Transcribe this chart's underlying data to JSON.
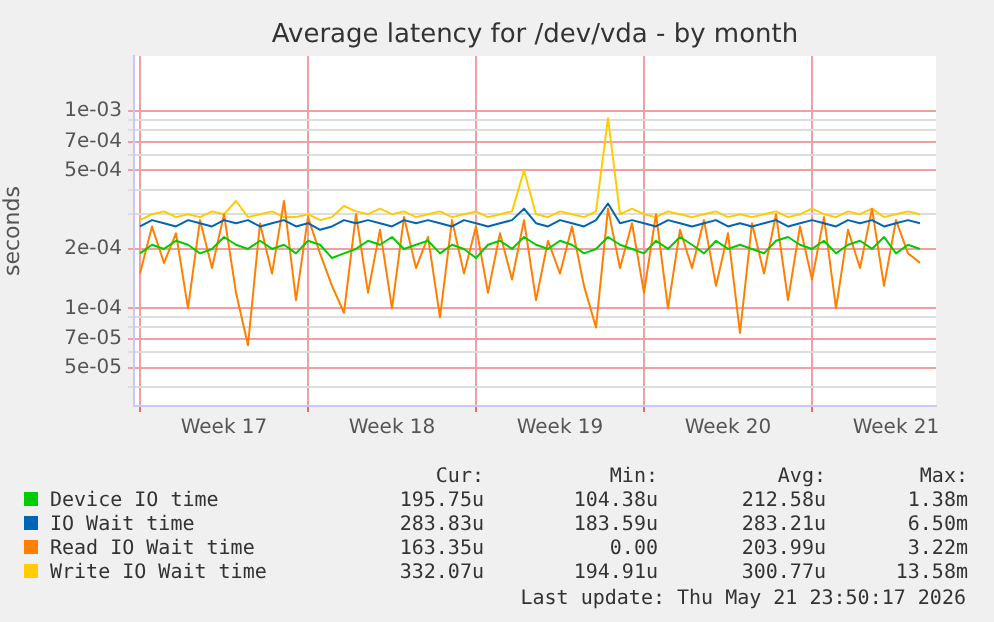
{
  "chart_data": {
    "type": "line",
    "title": "Average latency for /dev/vda - by month",
    "ylabel": "seconds",
    "log": true,
    "grid": true,
    "legend": "bottom",
    "x": [
      "2026-04-19T00:00",
      "2026-04-19T12:00",
      "2026-04-20T00:00",
      "2026-04-20T12:00",
      "2026-04-21T00:00",
      "2026-04-21T12:00",
      "2026-04-22T00:00",
      "2026-04-22T12:00",
      "2026-04-23T00:00",
      "2026-04-23T12:00",
      "2026-04-24T00:00",
      "2026-04-24T12:00",
      "2026-04-25T00:00",
      "2026-04-25T12:00",
      "2026-04-26T00:00",
      "2026-04-26T12:00",
      "2026-04-27T00:00",
      "2026-04-27T12:00",
      "2026-04-28T00:00",
      "2026-04-28T12:00",
      "2026-04-29T00:00",
      "2026-04-29T12:00",
      "2026-04-30T00:00",
      "2026-04-30T12:00",
      "2026-05-01T00:00",
      "2026-05-01T12:00",
      "2026-05-02T00:00",
      "2026-05-02T12:00",
      "2026-05-03T00:00",
      "2026-05-03T12:00",
      "2026-05-04T00:00",
      "2026-05-04T12:00",
      "2026-05-05T00:00",
      "2026-05-05T12:00",
      "2026-05-06T00:00",
      "2026-05-06T12:00",
      "2026-05-07T00:00",
      "2026-05-07T12:00",
      "2026-05-08T00:00",
      "2026-05-08T12:00",
      "2026-05-09T00:00",
      "2026-05-09T12:00",
      "2026-05-10T00:00",
      "2026-05-10T12:00",
      "2026-05-11T00:00",
      "2026-05-11T12:00",
      "2026-05-12T00:00",
      "2026-05-12T12:00",
      "2026-05-13T00:00",
      "2026-05-13T12:00",
      "2026-05-14T00:00",
      "2026-05-14T12:00",
      "2026-05-15T00:00",
      "2026-05-15T12:00",
      "2026-05-16T00:00",
      "2026-05-16T12:00",
      "2026-05-17T00:00",
      "2026-05-17T12:00",
      "2026-05-18T00:00",
      "2026-05-18T12:00",
      "2026-05-19T00:00",
      "2026-05-19T12:00",
      "2026-05-20T00:00",
      "2026-05-20T12:00",
      "2026-05-21T00:00",
      "2026-05-21T12:00"
    ],
    "series": [
      {
        "name": "Device IO time",
        "color": "#00cc00",
        "values": [
          0.00019,
          0.00021,
          0.0002,
          0.00022,
          0.00021,
          0.00019,
          0.0002,
          0.00023,
          0.00021,
          0.0002,
          0.00022,
          0.0002,
          0.00021,
          0.00019,
          0.00022,
          0.00021,
          0.00018,
          0.00019,
          0.0002,
          0.00022,
          0.00021,
          0.00023,
          0.0002,
          0.00021,
          0.00022,
          0.00019,
          0.00021,
          0.0002,
          0.00018,
          0.00021,
          0.00022,
          0.0002,
          0.00023,
          0.00021,
          0.0002,
          0.00022,
          0.00021,
          0.00019,
          0.0002,
          0.00023,
          0.00021,
          0.0002,
          0.00019,
          0.00022,
          0.0002,
          0.00023,
          0.00021,
          0.00019,
          0.00022,
          0.0002,
          0.00021,
          0.0002,
          0.00019,
          0.00022,
          0.00023,
          0.00021,
          0.0002,
          0.00022,
          0.00019,
          0.00021,
          0.00022,
          0.0002,
          0.00023,
          0.00019,
          0.00021,
          0.0002
        ]
      },
      {
        "name": "IO Wait time",
        "color": "#0066b3",
        "values": [
          0.00026,
          0.00028,
          0.00027,
          0.00026,
          0.00028,
          0.00027,
          0.00026,
          0.00028,
          0.00027,
          0.00028,
          0.00026,
          0.00027,
          0.00028,
          0.00026,
          0.00027,
          0.00025,
          0.00026,
          0.00028,
          0.00027,
          0.00028,
          0.00027,
          0.00026,
          0.00028,
          0.00027,
          0.00028,
          0.00027,
          0.00026,
          0.00028,
          0.00027,
          0.00026,
          0.00027,
          0.00028,
          0.00032,
          0.00027,
          0.00026,
          0.00028,
          0.00027,
          0.00026,
          0.00028,
          0.00034,
          0.00027,
          0.00028,
          0.00027,
          0.00026,
          0.00028,
          0.00027,
          0.00026,
          0.00027,
          0.00028,
          0.00026,
          0.00027,
          0.00026,
          0.00027,
          0.00028,
          0.00026,
          0.00027,
          0.00028,
          0.00027,
          0.00026,
          0.00028,
          0.00027,
          0.00028,
          0.00026,
          0.00027,
          0.00028,
          0.00027
        ]
      },
      {
        "name": "Read IO Wait time",
        "color": "#ff8000",
        "values": [
          0.00015,
          0.00026,
          0.00017,
          0.00024,
          0.0001,
          0.00028,
          0.00016,
          0.0003,
          0.00012,
          6.5e-05,
          0.00027,
          0.00015,
          0.00035,
          0.00011,
          0.00029,
          0.00019,
          0.00013,
          9.5e-05,
          0.0003,
          0.00012,
          0.00025,
          0.0001,
          0.00029,
          0.00016,
          0.00023,
          9e-05,
          0.00028,
          0.00015,
          0.00026,
          0.00012,
          0.00024,
          0.00014,
          0.00028,
          0.00011,
          0.00022,
          0.00015,
          0.00026,
          0.00013,
          8e-05,
          0.00032,
          0.00016,
          0.00027,
          0.00012,
          0.0003,
          0.0001,
          0.00025,
          0.00016,
          0.00028,
          0.00013,
          0.00024,
          7.5e-05,
          0.00027,
          0.00015,
          0.0003,
          0.00011,
          0.00026,
          0.00014,
          0.00029,
          0.0001,
          0.00025,
          0.00016,
          0.00032,
          0.00013,
          0.00028,
          0.00019,
          0.00017
        ]
      },
      {
        "name": "Write IO Wait time",
        "color": "#ffcc00",
        "values": [
          0.00028,
          0.0003,
          0.00031,
          0.00029,
          0.0003,
          0.00029,
          0.00031,
          0.0003,
          0.00035,
          0.00029,
          0.0003,
          0.00031,
          0.00029,
          0.00029,
          0.0003,
          0.00028,
          0.00029,
          0.00033,
          0.00031,
          0.0003,
          0.00032,
          0.0003,
          0.00031,
          0.00029,
          0.0003,
          0.00031,
          0.00029,
          0.0003,
          0.00031,
          0.00029,
          0.0003,
          0.00031,
          0.0005,
          0.0003,
          0.00029,
          0.00031,
          0.0003,
          0.00029,
          0.00031,
          0.00092,
          0.0003,
          0.00032,
          0.0003,
          0.00029,
          0.00031,
          0.0003,
          0.00029,
          0.0003,
          0.00031,
          0.00029,
          0.0003,
          0.00029,
          0.0003,
          0.00031,
          0.00029,
          0.0003,
          0.00032,
          0.0003,
          0.00029,
          0.00031,
          0.0003,
          0.00032,
          0.00029,
          0.0003,
          0.00031,
          0.0003
        ]
      }
    ],
    "ylim": [
      3.2e-05,
      0.0019
    ],
    "yticks": [
      {
        "value": 4e-05,
        "label": null
      },
      {
        "value": 5e-05,
        "label": "5e-05"
      },
      {
        "value": 6e-05,
        "label": null
      },
      {
        "value": 7e-05,
        "label": "7e-05"
      },
      {
        "value": 8e-05,
        "label": null
      },
      {
        "value": 9e-05,
        "label": null
      },
      {
        "value": 0.0001,
        "label": "1e-04"
      },
      {
        "value": 0.0002,
        "label": "2e-04"
      },
      {
        "value": 0.0003,
        "label": null
      },
      {
        "value": 0.0004,
        "label": null
      },
      {
        "value": 0.0005,
        "label": "5e-04"
      },
      {
        "value": 0.0006,
        "label": null
      },
      {
        "value": 0.0007,
        "label": "7e-04"
      },
      {
        "value": 0.0008,
        "label": null
      },
      {
        "value": 0.0009,
        "label": null
      },
      {
        "value": 0.001,
        "label": "1e-03"
      }
    ],
    "xlim": [
      "2026-04-18T18:00",
      "2026-05-22T04:00"
    ],
    "xticks": [
      {
        "value": "2026-04-19",
        "label": null
      },
      {
        "value": "2026-04-22T12:00",
        "label": "Week 17"
      },
      {
        "value": "2026-04-26",
        "label": null
      },
      {
        "value": "2026-04-29T12:00",
        "label": "Week 18"
      },
      {
        "value": "2026-05-03",
        "label": null
      },
      {
        "value": "2026-05-06T12:00",
        "label": "Week 19"
      },
      {
        "value": "2026-05-10",
        "label": null
      },
      {
        "value": "2026-05-13T12:00",
        "label": "Week 20"
      },
      {
        "value": "2026-05-17",
        "label": null
      },
      {
        "value": "2026-05-20T12:00",
        "label": "Week 21"
      }
    ],
    "annotations": [
      "Cur:",
      "Min:",
      "Avg:",
      "Max:",
      "195.75u",
      "104.38u",
      "212.58u",
      "1.38m",
      "283.83u",
      "183.59u",
      "283.21u",
      "6.50m",
      "163.35u",
      "0.00",
      "203.99u",
      "3.22m",
      "332.07u",
      "194.91u",
      "300.77u",
      "13.58m",
      "Last update: Thu May 21 23:50:17 2026"
    ]
  }
}
